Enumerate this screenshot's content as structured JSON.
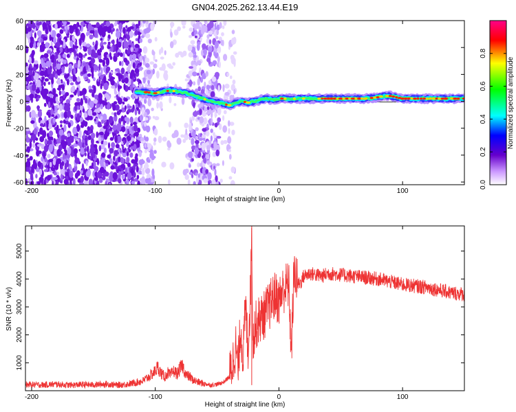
{
  "title": "GN04.2025.262.13.44.E19",
  "chart_data": [
    {
      "type": "heatmap",
      "name": "spectrogram",
      "xlabel": "Height of straight line (km)",
      "ylabel": "Frequency (Hz)",
      "xlim": [
        -205,
        150
      ],
      "ylim": [
        -62,
        60
      ],
      "xticks": [
        -200,
        -100,
        0,
        100
      ],
      "yticks": [
        60,
        40,
        20,
        0,
        -20,
        -40,
        -60
      ],
      "colorbar": {
        "label": "Normalized spectral amplitude",
        "ticks": [
          0.0,
          0.2,
          0.4,
          0.6,
          0.8
        ],
        "range": [
          0,
          1
        ],
        "stops": [
          "#ffffff",
          "#6600cc",
          "#0000ff",
          "#00ffff",
          "#00ff00",
          "#ffff00",
          "#ff0000",
          "#ff0088"
        ]
      },
      "ridge": {
        "x": [
          -115,
          -110,
          -100,
          -95,
          -88,
          -80,
          -70,
          -62,
          -55,
          -48,
          -40,
          -35,
          -30,
          -25,
          -20,
          -15,
          -10,
          -5,
          0,
          5,
          10,
          20,
          30,
          40,
          50,
          60,
          70,
          80,
          85,
          90,
          95,
          100,
          110,
          120,
          130,
          140,
          150
        ],
        "y": [
          7,
          7,
          6,
          7,
          8,
          7,
          5,
          2,
          0,
          -1,
          -3,
          -1,
          0,
          -1,
          0,
          1,
          2,
          1,
          2,
          2,
          2,
          2,
          2,
          2,
          2,
          2,
          2,
          3,
          4,
          4,
          3,
          2,
          2,
          2,
          2,
          2,
          2
        ]
      }
    },
    {
      "type": "line",
      "name": "snr",
      "xlabel": "Height of straight line (km)",
      "ylabel": "SNR (10 * v/v)",
      "xlim": [
        -205,
        150
      ],
      "ylim": [
        0,
        5900
      ],
      "xticks": [
        -200,
        -100,
        0,
        100
      ],
      "yticks": [
        1000,
        2000,
        3000,
        4000,
        5000
      ],
      "color": "#ee3333",
      "series": [
        {
          "name": "SNR",
          "x": [
            -205,
            -190,
            -180,
            -170,
            -160,
            -150,
            -140,
            -130,
            -120,
            -115,
            -110,
            -105,
            -100,
            -98,
            -95,
            -92,
            -90,
            -88,
            -85,
            -82,
            -80,
            -78,
            -75,
            -72,
            -70,
            -65,
            -60,
            -55,
            -50,
            -45,
            -40,
            -37,
            -35,
            -33,
            -31,
            -29,
            -27,
            -25,
            -23,
            -22,
            -21,
            -20,
            -18,
            -15,
            -12,
            -10,
            -8,
            -5,
            -3,
            0,
            2,
            5,
            8,
            10,
            12,
            13,
            15,
            18,
            20,
            25,
            30,
            35,
            40,
            50,
            60,
            70,
            80,
            90,
            100,
            110,
            120,
            130,
            140,
            150
          ],
          "y": [
            220,
            210,
            230,
            200,
            220,
            210,
            240,
            200,
            250,
            300,
            350,
            500,
            700,
            850,
            600,
            500,
            650,
            550,
            700,
            600,
            800,
            900,
            550,
            500,
            400,
            300,
            250,
            200,
            230,
            300,
            500,
            1100,
            1600,
            800,
            2300,
            1200,
            3000,
            1500,
            3500,
            5900,
            1600,
            2200,
            2400,
            2600,
            2700,
            2900,
            3000,
            3300,
            3400,
            3200,
            3500,
            3700,
            3800,
            1300,
            4000,
            4300,
            3800,
            3900,
            4100,
            4200,
            4150,
            4100,
            4200,
            4150,
            4100,
            4050,
            4000,
            3900,
            3800,
            3750,
            3700,
            3600,
            3500,
            3450
          ]
        }
      ]
    }
  ]
}
